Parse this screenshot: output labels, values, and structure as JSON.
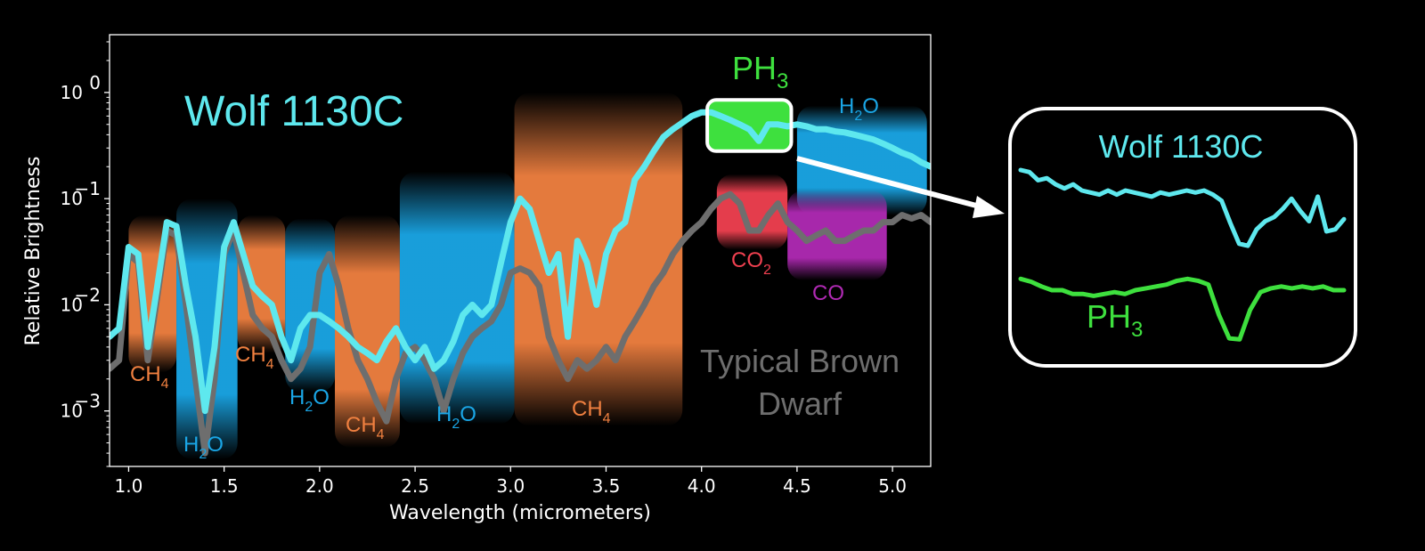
{
  "chart_data": {
    "type": "line",
    "xlabel": "Wavelength (micrometers)",
    "ylabel": "Relative Brightness",
    "xlim": [
      0.9,
      5.2
    ],
    "ylim": [
      0.0003,
      3.5
    ],
    "yscale": "log",
    "grid": false,
    "x_ticks": [
      "1.0",
      "1.5",
      "2.0",
      "2.5",
      "3.0",
      "3.5",
      "4.0",
      "4.5",
      "5.0"
    ],
    "y_ticks": [
      {
        "base": "10",
        "exp": "0",
        "value": 1
      },
      {
        "base": "10",
        "exp": "−1",
        "value": 0.1
      },
      {
        "base": "10",
        "exp": "−2",
        "value": 0.01
      },
      {
        "base": "10",
        "exp": "−3",
        "value": 0.001
      }
    ],
    "series": [
      {
        "name": "Wolf 1130C",
        "color": "#5ee8ee",
        "x": [
          0.9,
          0.95,
          1.0,
          1.05,
          1.1,
          1.15,
          1.2,
          1.25,
          1.3,
          1.35,
          1.4,
          1.45,
          1.5,
          1.55,
          1.6,
          1.65,
          1.7,
          1.75,
          1.8,
          1.85,
          1.9,
          1.95,
          2.0,
          2.05,
          2.1,
          2.15,
          2.2,
          2.25,
          2.3,
          2.35,
          2.4,
          2.45,
          2.5,
          2.55,
          2.6,
          2.65,
          2.7,
          2.75,
          2.8,
          2.85,
          2.9,
          2.95,
          3.0,
          3.05,
          3.1,
          3.15,
          3.2,
          3.25,
          3.3,
          3.35,
          3.4,
          3.45,
          3.5,
          3.55,
          3.6,
          3.65,
          3.7,
          3.75,
          3.8,
          3.85,
          3.9,
          3.95,
          4.0,
          4.05,
          4.1,
          4.15,
          4.2,
          4.25,
          4.3,
          4.35,
          4.4,
          4.45,
          4.5,
          4.55,
          4.6,
          4.65,
          4.7,
          4.75,
          4.8,
          4.85,
          4.9,
          4.95,
          5.0,
          5.05,
          5.1,
          5.15,
          5.2
        ],
        "values": [
          0.005,
          0.006,
          0.035,
          0.03,
          0.004,
          0.015,
          0.06,
          0.055,
          0.015,
          0.005,
          0.001,
          0.004,
          0.035,
          0.06,
          0.03,
          0.015,
          0.012,
          0.01,
          0.005,
          0.003,
          0.006,
          0.008,
          0.008,
          0.007,
          0.006,
          0.005,
          0.004,
          0.0035,
          0.003,
          0.0045,
          0.006,
          0.004,
          0.003,
          0.004,
          0.0025,
          0.003,
          0.0045,
          0.008,
          0.01,
          0.008,
          0.01,
          0.025,
          0.06,
          0.1,
          0.08,
          0.04,
          0.02,
          0.03,
          0.005,
          0.04,
          0.025,
          0.01,
          0.03,
          0.05,
          0.06,
          0.15,
          0.2,
          0.28,
          0.38,
          0.45,
          0.52,
          0.6,
          0.65,
          0.65,
          0.6,
          0.55,
          0.5,
          0.45,
          0.35,
          0.5,
          0.5,
          0.48,
          0.5,
          0.48,
          0.45,
          0.45,
          0.43,
          0.42,
          0.4,
          0.38,
          0.36,
          0.33,
          0.3,
          0.27,
          0.25,
          0.22,
          0.2
        ]
      },
      {
        "name": "Typical Brown Dwarf",
        "color": "#6e6e6e",
        "x": [
          0.9,
          0.95,
          1.0,
          1.05,
          1.1,
          1.15,
          1.2,
          1.25,
          1.3,
          1.35,
          1.4,
          1.45,
          1.5,
          1.55,
          1.6,
          1.65,
          1.7,
          1.75,
          1.8,
          1.85,
          1.9,
          1.95,
          2.0,
          2.05,
          2.1,
          2.15,
          2.2,
          2.25,
          2.3,
          2.35,
          2.4,
          2.45,
          2.5,
          2.55,
          2.6,
          2.65,
          2.7,
          2.75,
          2.8,
          2.85,
          2.9,
          2.95,
          3.0,
          3.05,
          3.1,
          3.15,
          3.2,
          3.25,
          3.3,
          3.35,
          3.4,
          3.45,
          3.5,
          3.55,
          3.6,
          3.65,
          3.7,
          3.75,
          3.8,
          3.85,
          3.9,
          3.95,
          4.0,
          4.05,
          4.1,
          4.15,
          4.2,
          4.25,
          4.3,
          4.35,
          4.4,
          4.45,
          4.5,
          4.55,
          4.6,
          4.65,
          4.7,
          4.75,
          4.8,
          4.85,
          4.9,
          4.95,
          5.0,
          5.05,
          5.1,
          5.15,
          5.2
        ],
        "values": [
          0.0025,
          0.003,
          0.03,
          0.025,
          0.003,
          0.012,
          0.05,
          0.045,
          0.01,
          0.002,
          0.0004,
          0.002,
          0.03,
          0.05,
          0.02,
          0.008,
          0.006,
          0.005,
          0.003,
          0.002,
          0.0025,
          0.004,
          0.02,
          0.03,
          0.015,
          0.006,
          0.003,
          0.002,
          0.0012,
          0.0008,
          0.002,
          0.0035,
          0.004,
          0.003,
          0.002,
          0.001,
          0.002,
          0.0035,
          0.005,
          0.006,
          0.007,
          0.01,
          0.02,
          0.022,
          0.02,
          0.015,
          0.005,
          0.003,
          0.002,
          0.003,
          0.0025,
          0.003,
          0.004,
          0.003,
          0.005,
          0.007,
          0.01,
          0.015,
          0.02,
          0.03,
          0.04,
          0.05,
          0.06,
          0.08,
          0.1,
          0.11,
          0.09,
          0.05,
          0.05,
          0.07,
          0.09,
          0.06,
          0.05,
          0.04,
          0.045,
          0.05,
          0.04,
          0.04,
          0.045,
          0.05,
          0.05,
          0.06,
          0.06,
          0.07,
          0.065,
          0.07,
          0.06
        ]
      }
    ],
    "bands": [
      {
        "molecule": "CH4",
        "color": "#f08040",
        "x0": 1.0,
        "x1": 1.25,
        "ytop": 0.07,
        "ybot": 0.0023
      },
      {
        "molecule": "H2O",
        "color": "#1aa6e6",
        "x0": 1.25,
        "x1": 1.57,
        "ytop": 0.1,
        "ybot": 0.00035
      },
      {
        "molecule": "CH4",
        "color": "#f08040",
        "x0": 1.57,
        "x1": 1.82,
        "ytop": 0.07,
        "ybot": 0.0035
      },
      {
        "molecule": "H2O",
        "color": "#1aa6e6",
        "x0": 1.82,
        "x1": 2.08,
        "ytop": 0.065,
        "ybot": 0.0015
      },
      {
        "molecule": "CH4",
        "color": "#f08040",
        "x0": 2.08,
        "x1": 2.42,
        "ytop": 0.07,
        "ybot": 0.00045
      },
      {
        "molecule": "H2O",
        "color": "#1aa6e6",
        "x0": 2.42,
        "x1": 3.02,
        "ytop": 0.18,
        "ybot": 0.00075
      },
      {
        "molecule": "CH4",
        "color": "#f08040",
        "x0": 3.02,
        "x1": 3.9,
        "ytop": 1.0,
        "ybot": 0.00072
      },
      {
        "molecule": "H2O",
        "color": "#1aa6e6",
        "x0": 4.5,
        "x1": 5.18,
        "ytop": 0.75,
        "ybot": 0.07
      },
      {
        "molecule": "CO2",
        "color": "#f04050",
        "x0": 4.08,
        "x1": 4.45,
        "ytop": 0.17,
        "ybot": 0.033
      },
      {
        "molecule": "CO",
        "color": "#b02ab4",
        "x0": 4.45,
        "x1": 4.97,
        "ytop": 0.12,
        "ybot": 0.017
      },
      {
        "molecule": "PH3",
        "color": "#3ee03e",
        "x0": 4.03,
        "x1": 4.47,
        "ytop": 0.85,
        "ybot": 0.28
      }
    ],
    "inset": {
      "wolf_trace": [
        0.8,
        0.78,
        0.7,
        0.72,
        0.66,
        0.62,
        0.66,
        0.6,
        0.58,
        0.56,
        0.6,
        0.56,
        0.6,
        0.58,
        0.56,
        0.54,
        0.58,
        0.56,
        0.58,
        0.6,
        0.58,
        0.6,
        0.56,
        0.5,
        0.28,
        0.08,
        0.06,
        0.22,
        0.3,
        0.34,
        0.42,
        0.52,
        0.4,
        0.3,
        0.54,
        0.2,
        0.22,
        0.32
      ],
      "ph3_trace": [
        0.78,
        0.75,
        0.7,
        0.66,
        0.66,
        0.62,
        0.62,
        0.6,
        0.62,
        0.64,
        0.62,
        0.66,
        0.68,
        0.7,
        0.72,
        0.76,
        0.78,
        0.76,
        0.72,
        0.4,
        0.15,
        0.14,
        0.45,
        0.64,
        0.68,
        0.7,
        0.68,
        0.7,
        0.68,
        0.7,
        0.66,
        0.66
      ]
    }
  },
  "labels": {
    "ylabel": "Relative Brightness",
    "xlabel": "Wavelength (micrometers)",
    "wolf_title": "Wolf 1130C",
    "brown_dwarf_1": "Typical Brown",
    "brown_dwarf_2": "Dwarf",
    "ph3_main": "PH",
    "ph3_sub": "3",
    "ch4_a": "CH",
    "ch4_a_sub": "4",
    "ch4_b": "CH",
    "ch4_b_sub": "4",
    "ch4_c": "CH",
    "ch4_c_sub": "4",
    "ch4_d": "CH",
    "ch4_d_sub": "4",
    "h2o_a_pre": "H",
    "h2o_a_sub": "2",
    "h2o_a_post": "O",
    "h2o_b_pre": "H",
    "h2o_b_sub": "2",
    "h2o_b_post": "O",
    "h2o_c_pre": "H",
    "h2o_c_sub": "2",
    "h2o_c_post": "O",
    "h2o_d_pre": "H",
    "h2o_d_sub": "2",
    "h2o_d_post": "O",
    "co2_pre": "CO",
    "co2_sub": "2",
    "co": "CO",
    "inset_wolf": "Wolf 1130C",
    "inset_ph3": "PH",
    "inset_ph3_sub": "3"
  },
  "colors": {
    "wolf": "#5ee8ee",
    "brown_dwarf": "#6e6e6e",
    "ph3": "#3ee03e",
    "ch4": "#f08040",
    "h2o": "#1aa6e6",
    "co2": "#f04050",
    "co": "#b02ab4"
  }
}
